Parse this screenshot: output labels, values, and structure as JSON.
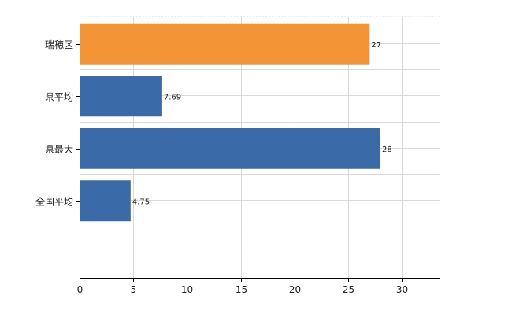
{
  "chart_data": {
    "type": "bar",
    "orientation": "horizontal",
    "categories": [
      "瑞穂区",
      "県平均",
      "県最大",
      "全国平均"
    ],
    "values": [
      27,
      7.69,
      28,
      4.75
    ],
    "data_labels": [
      "27",
      "7.69",
      "28",
      "4.75"
    ],
    "bar_colors": [
      "#f39536",
      "#3a6ba8",
      "#3a6ba8",
      "#3a6ba8"
    ],
    "title": "",
    "xlabel": "",
    "ylabel": "",
    "xlim": [
      0,
      33.5
    ],
    "xticks": [
      0,
      5,
      10,
      15,
      20,
      25,
      30
    ],
    "xtick_labels": [
      "0",
      "5",
      "10",
      "15",
      "20",
      "25",
      "30"
    ],
    "grid": true,
    "legend": "none"
  }
}
